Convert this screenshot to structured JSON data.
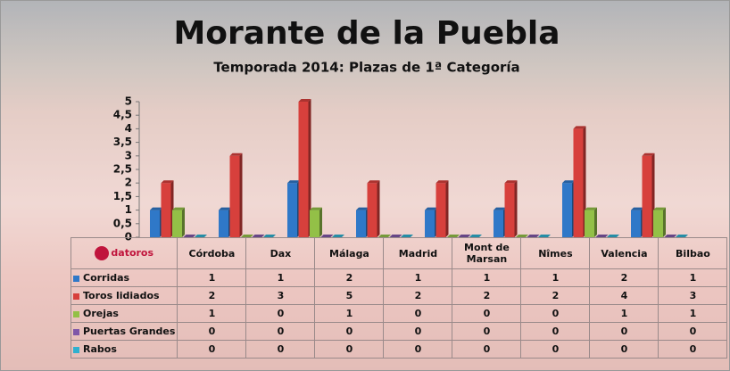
{
  "chart_data": {
    "type": "bar",
    "title": "Morante de la Puebla",
    "subtitle": "Temporada 2014: Plazas de 1ª Categoría",
    "logo": "datoros",
    "categories": [
      "Córdoba",
      "Dax",
      "Málaga",
      "Madrid",
      "Mont de Marsan",
      "Nîmes",
      "Valencia",
      "Bilbao"
    ],
    "series": [
      {
        "name": "Corridas",
        "color": "#2f78c8",
        "values": [
          1,
          1,
          2,
          1,
          1,
          1,
          2,
          1
        ]
      },
      {
        "name": "Toros lidiados",
        "color": "#d7403c",
        "values": [
          2,
          3,
          5,
          2,
          2,
          2,
          4,
          3
        ]
      },
      {
        "name": "Orejas",
        "color": "#93c047",
        "values": [
          1,
          0,
          1,
          0,
          0,
          0,
          1,
          1
        ]
      },
      {
        "name": "Puertas Grandes",
        "color": "#7f57a8",
        "values": [
          0,
          0,
          0,
          0,
          0,
          0,
          0,
          0
        ]
      },
      {
        "name": "Rabos",
        "color": "#2eb0cf",
        "values": [
          0,
          0,
          0,
          0,
          0,
          0,
          0,
          0
        ]
      }
    ],
    "ylim": [
      0,
      5
    ],
    "yticks": [
      0,
      {
        "value": 0.5,
        "label": "0,5"
      },
      1,
      {
        "value": 1.5,
        "label": "1,5"
      },
      2,
      {
        "value": 2.5,
        "label": "2,5"
      },
      3,
      {
        "value": 3.5,
        "label": "3,5"
      },
      4,
      {
        "value": 4.5,
        "label": "4,5"
      },
      5
    ],
    "grid": false
  }
}
